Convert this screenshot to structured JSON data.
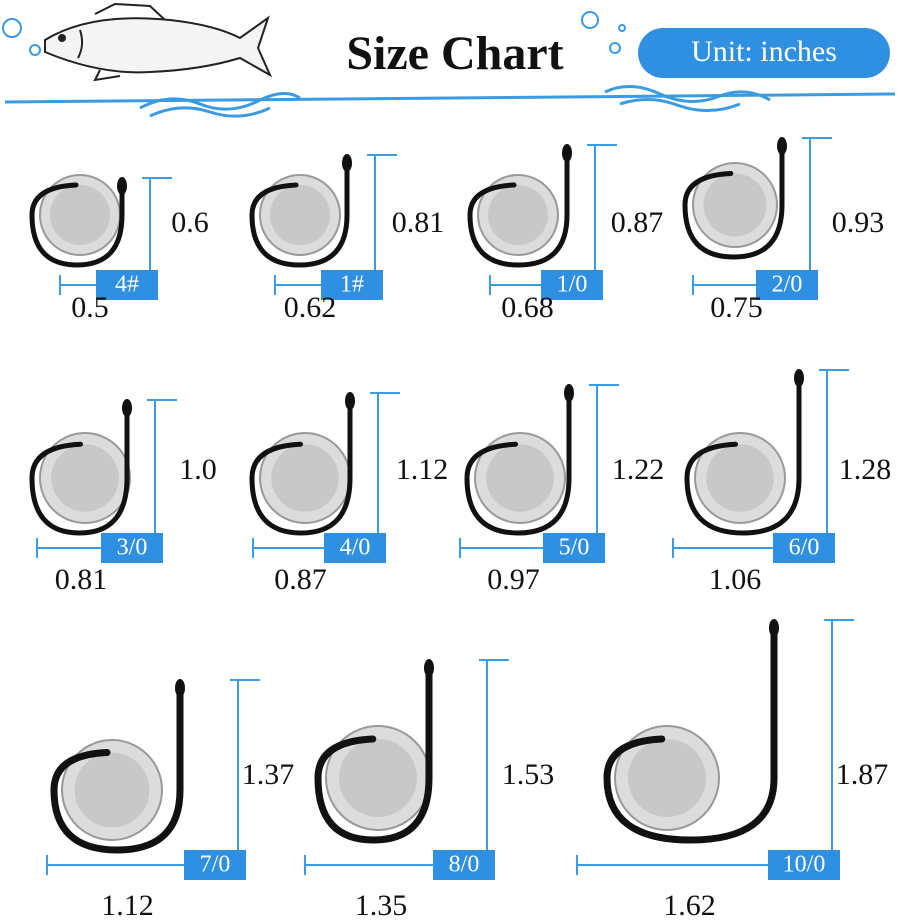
{
  "header": {
    "title": "Size Chart",
    "unit": "Unit: inches"
  },
  "items": [
    {
      "size": "4#",
      "height": "0.6",
      "width": "0.5"
    },
    {
      "size": "1#",
      "height": "0.81",
      "width": "0.62"
    },
    {
      "size": "1/0",
      "height": "0.87",
      "width": "0.68"
    },
    {
      "size": "2/0",
      "height": "0.93",
      "width": "0.75"
    },
    {
      "size": "3/0",
      "height": "1.0",
      "width": "0.81"
    },
    {
      "size": "4/0",
      "height": "1.12",
      "width": "0.87"
    },
    {
      "size": "5/0",
      "height": "1.22",
      "width": "0.97"
    },
    {
      "size": "6/0",
      "height": "1.28",
      "width": "1.06"
    },
    {
      "size": "7/0",
      "height": "1.37",
      "width": "1.12"
    },
    {
      "size": "8/0",
      "height": "1.53",
      "width": "1.35"
    },
    {
      "size": "10/0",
      "height": "1.87",
      "width": "1.62"
    }
  ]
}
